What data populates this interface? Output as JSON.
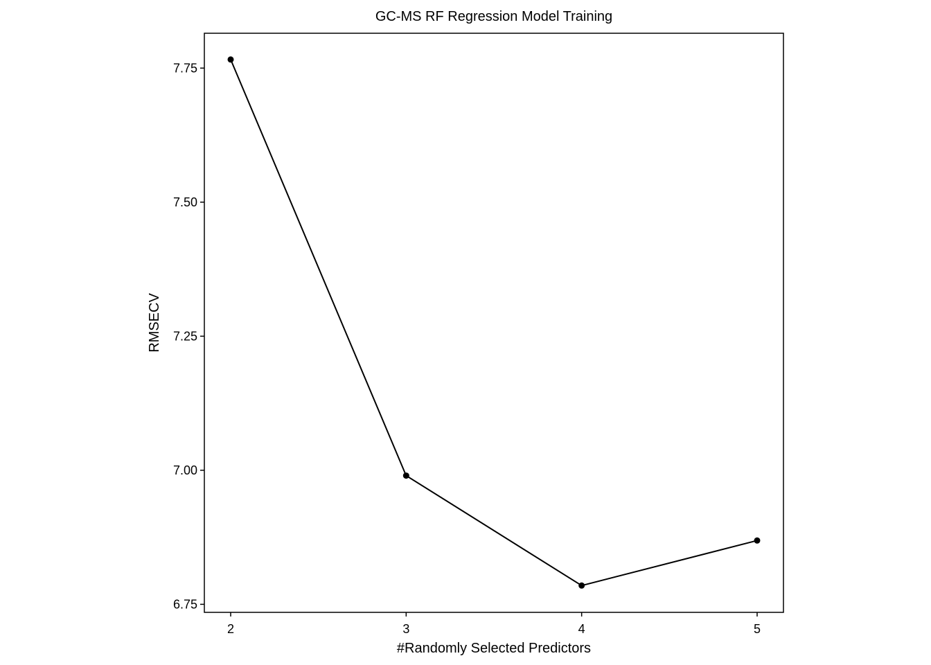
{
  "chart_data": {
    "type": "line",
    "title": "GC-MS RF Regression Model Training",
    "xlabel": "#Randomly Selected Predictors",
    "ylabel": "RMSECV",
    "x": [
      2,
      3,
      4,
      5
    ],
    "series": [
      {
        "values": [
          7.766,
          6.99,
          6.785,
          6.869
        ]
      }
    ],
    "xticks": [
      "2",
      "3",
      "4",
      "5"
    ],
    "yticks": [
      "6.75",
      "7.00",
      "7.25",
      "7.50",
      "7.75"
    ],
    "xlim": [
      1.85,
      5.15
    ],
    "ylim": [
      6.735,
      7.815
    ],
    "grid": false,
    "legend": "none",
    "colors": {
      "line": "#000000",
      "marker": "#000000",
      "frame": "#000000"
    }
  }
}
